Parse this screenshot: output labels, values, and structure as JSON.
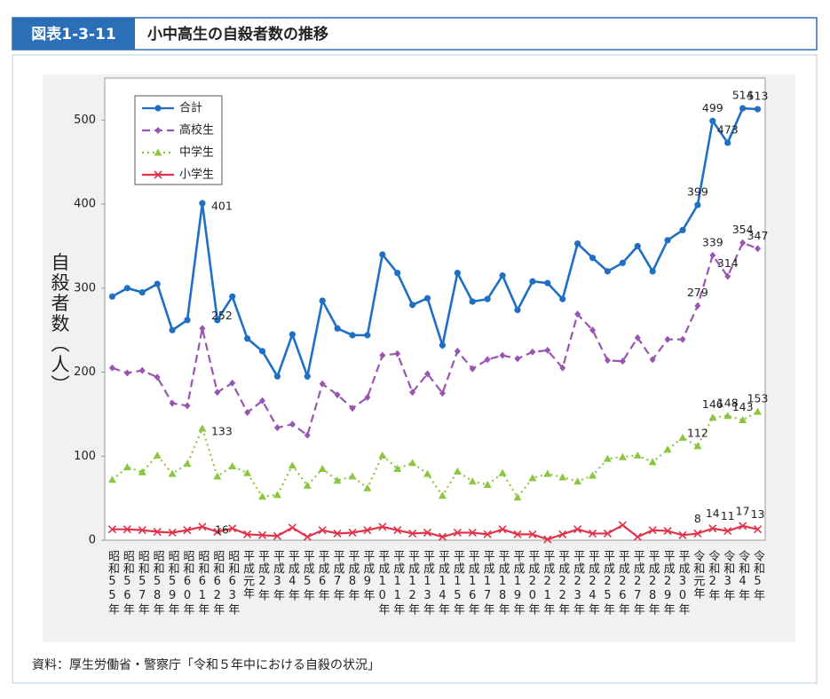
{
  "header": {
    "figure_number": "図表1-3-11",
    "title": "小中高生の自殺者数の推移"
  },
  "chart_data": {
    "type": "line",
    "y_label": "自殺者数（人）",
    "categories": [
      "昭和55年",
      "昭和56年",
      "昭和57年",
      "昭和58年",
      "昭和59年",
      "昭和60年",
      "昭和61年",
      "昭和62年",
      "昭和63年",
      "平成元年",
      "平成2年",
      "平成3年",
      "平成4年",
      "平成5年",
      "平成6年",
      "平成7年",
      "平成8年",
      "平成9年",
      "平成10年",
      "平成11年",
      "平成12年",
      "平成13年",
      "平成14年",
      "平成15年",
      "平成16年",
      "平成17年",
      "平成18年",
      "平成19年",
      "平成20年",
      "平成21年",
      "平成22年",
      "平成23年",
      "平成24年",
      "平成25年",
      "平成26年",
      "平成27年",
      "平成28年",
      "平成29年",
      "平成30年",
      "令和元年",
      "令和2年",
      "令和3年",
      "令和4年",
      "令和5年"
    ],
    "series": [
      {
        "name": "合計",
        "color": "#1f6fc5",
        "marker": "circle",
        "dash": "solid",
        "values": [
          290,
          300,
          295,
          305,
          250,
          262,
          401,
          262,
          290,
          240,
          225,
          195,
          245,
          195,
          285,
          252,
          244,
          244,
          340,
          318,
          280,
          288,
          232,
          318,
          284,
          287,
          315,
          274,
          308,
          306,
          287,
          353,
          336,
          320,
          330,
          350,
          320,
          357,
          369,
          399,
          499,
          473,
          514,
          513
        ],
        "labeled_points": [
          6,
          39,
          40,
          41,
          42,
          43
        ]
      },
      {
        "name": "高校生",
        "color": "#9955b0",
        "marker": "diamond",
        "dash": "dashed",
        "values": [
          205,
          199,
          202,
          194,
          163,
          160,
          252,
          176,
          187,
          152,
          166,
          134,
          138,
          125,
          186,
          173,
          157,
          170,
          220,
          222,
          176,
          198,
          175,
          225,
          204,
          215,
          220,
          216,
          224,
          226,
          205,
          269,
          250,
          214,
          213,
          241,
          215,
          239,
          239,
          279,
          339,
          314,
          354,
          347
        ],
        "labeled_points": [
          6,
          39,
          40,
          41,
          42,
          43
        ]
      },
      {
        "name": "中学生",
        "color": "#8cc63f",
        "marker": "triangle",
        "dash": "dotted",
        "values": [
          72,
          87,
          81,
          101,
          79,
          91,
          133,
          76,
          88,
          80,
          52,
          54,
          89,
          65,
          85,
          71,
          76,
          62,
          101,
          85,
          92,
          79,
          53,
          82,
          70,
          66,
          80,
          51,
          74,
          79,
          75,
          70,
          77,
          97,
          99,
          101,
          93,
          108,
          122,
          112,
          146,
          148,
          143,
          153
        ],
        "labeled_points": [
          6,
          39,
          40,
          41,
          42,
          43
        ]
      },
      {
        "name": "小学生",
        "color": "#e0334a",
        "marker": "cross",
        "dash": "solid",
        "values": [
          13,
          13,
          12,
          10,
          9,
          12,
          16,
          10,
          14,
          7,
          6,
          5,
          15,
          4,
          12,
          8,
          9,
          12,
          16,
          12,
          8,
          9,
          4,
          9,
          9,
          7,
          13,
          7,
          7,
          1,
          7,
          13,
          8,
          8,
          18,
          4,
          12,
          11,
          6,
          8,
          14,
          11,
          17,
          13
        ],
        "labeled_points": [
          6,
          39,
          40,
          41,
          42,
          43
        ]
      }
    ],
    "ylim": [
      0,
      550
    ],
    "yticks": [
      0,
      100,
      200,
      300,
      400,
      500
    ],
    "grid": false,
    "legend": "upper-left"
  },
  "source": "資料：厚生労働省・警察庁「令和５年中における自殺の状況」"
}
